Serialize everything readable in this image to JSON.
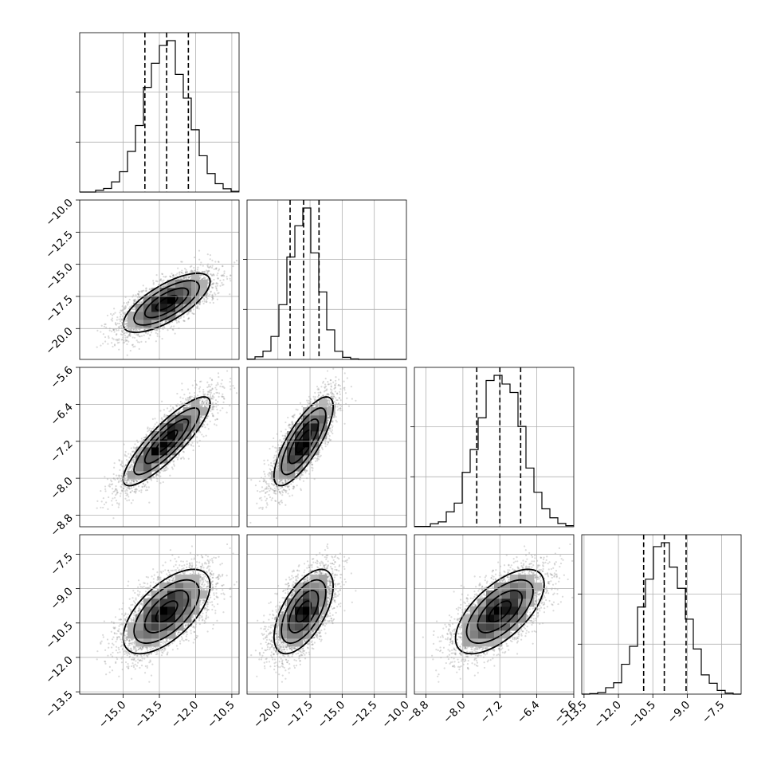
{
  "chart_data": {
    "type": "corner",
    "title": "",
    "n_params": 4,
    "params": [
      {
        "range": [
          -16.8,
          -10.2
        ],
        "ticks": [
          -15.0,
          -13.5,
          -12.0,
          -10.5
        ],
        "tick_labels": [
          "−15.0",
          "−13.5",
          "−12.0",
          "−10.5"
        ],
        "median": -13.2,
        "q16": -14.1,
        "q84": -12.3,
        "std": 0.9
      },
      {
        "range": [
          -22.4,
          -10.0
        ],
        "ticks": [
          -20.0,
          -17.5,
          -15.0,
          -12.5,
          -10.0
        ],
        "tick_labels": [
          "−20.0",
          "−17.5",
          "−15.0",
          "−12.5",
          "−10.0"
        ],
        "median": -18.0,
        "q16": -19.05,
        "q84": -16.8,
        "std": 1.15
      },
      {
        "range": [
          -9.05,
          -5.6
        ],
        "ticks": [
          -8.8,
          -8.0,
          -7.2,
          -6.4,
          -5.6
        ],
        "tick_labels": [
          "−8.8",
          "−8.0",
          "−7.2",
          "−6.4",
          "−5.6"
        ],
        "median": -7.2,
        "q16": -7.7,
        "q84": -6.75,
        "std": 0.48
      },
      {
        "range": [
          -13.6,
          -6.65
        ],
        "ticks": [
          -13.5,
          -12.0,
          -10.5,
          -9.0,
          -7.5
        ],
        "tick_labels": [
          "−13.5",
          "−12.0",
          "−10.5",
          "−9.0",
          "−7.5"
        ],
        "median": -10.0,
        "q16": -10.9,
        "q84": -9.05,
        "std": 0.92
      }
    ],
    "correlations": [
      [
        0,
        1,
        0.72
      ],
      [
        0,
        2,
        0.86
      ],
      [
        1,
        2,
        0.78
      ],
      [
        0,
        3,
        0.62
      ],
      [
        1,
        3,
        0.6
      ],
      [
        2,
        3,
        0.64
      ]
    ],
    "contour_levels_sigma": [
      0.5,
      1.0,
      1.5,
      2.0
    ],
    "n_samples": 4000,
    "grid": true,
    "quantiles": [
      0.16,
      0.5,
      0.84
    ]
  }
}
